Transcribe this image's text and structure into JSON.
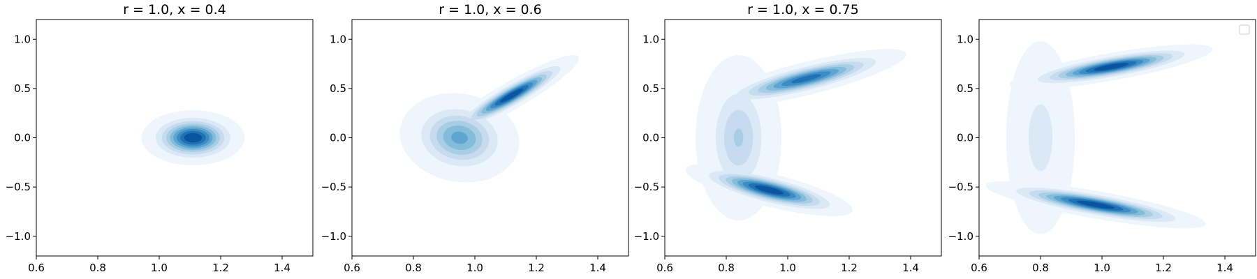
{
  "chart_data": [
    {
      "type": "contour",
      "title": "r = 1.0, x = 0.4",
      "xlim": [
        0.6,
        1.5
      ],
      "ylim": [
        -1.2,
        1.2
      ],
      "xticks": [
        "0.6",
        "0.8",
        "1.0",
        "1.2",
        "1.4"
      ],
      "yticks": [
        "1.0",
        "0.5",
        "0.0",
        "−0.5",
        "−1.0"
      ],
      "density_peaks": [
        {
          "x": 1.11,
          "y": 0.0,
          "sx": 0.06,
          "sy": 0.1,
          "angle": 0,
          "weight": 1.0
        }
      ]
    },
    {
      "type": "contour",
      "title": "r = 1.0, x = 0.6",
      "xlim": [
        0.6,
        1.5
      ],
      "ylim": [
        -1.2,
        1.2
      ],
      "xticks": [
        "0.6",
        "0.8",
        "1.0",
        "1.2",
        "1.4"
      ],
      "yticks": [
        "1.0",
        "0.5",
        "0.0",
        "−0.5",
        "−1.0"
      ],
      "density_peaks": [
        {
          "x": 1.12,
          "y": 0.43,
          "sx": 0.09,
          "sy": 0.05,
          "angle": 30,
          "weight": 1.0
        },
        {
          "x": 0.95,
          "y": 0.0,
          "sx": 0.07,
          "sy": 0.16,
          "angle": -10,
          "weight": 0.6
        }
      ]
    },
    {
      "type": "contour",
      "title": "r = 1.0, x = 0.75",
      "xlim": [
        0.6,
        1.5
      ],
      "ylim": [
        -1.2,
        1.2
      ],
      "xticks": [
        "0.6",
        "0.8",
        "1.0",
        "1.2",
        "1.4"
      ],
      "yticks": [
        "1.0",
        "0.5",
        "0.0",
        "−0.5",
        "−1.0"
      ],
      "density_peaks": [
        {
          "x": 1.06,
          "y": 0.6,
          "sx": 0.12,
          "sy": 0.06,
          "angle": 14,
          "weight": 0.85
        },
        {
          "x": 0.94,
          "y": -0.53,
          "sx": 0.1,
          "sy": 0.06,
          "angle": -14,
          "weight": 1.0
        },
        {
          "x": 0.84,
          "y": 0.0,
          "sx": 0.05,
          "sy": 0.3,
          "angle": 0,
          "weight": 0.35
        }
      ]
    },
    {
      "type": "contour",
      "title": "",
      "xlim": [
        0.6,
        1.5
      ],
      "ylim": [
        -1.2,
        1.2
      ],
      "xticks": [
        "0.6",
        "0.8",
        "1.0",
        "1.2",
        "1.4"
      ],
      "yticks": [
        "1.0",
        "0.5",
        "0.0",
        "−0.5",
        "−1.0"
      ],
      "legend": "top-right, empty",
      "density_peaks": [
        {
          "x": 1.03,
          "y": 0.72,
          "sx": 0.12,
          "sy": 0.05,
          "angle": 10,
          "weight": 1.0
        },
        {
          "x": 0.98,
          "y": -0.68,
          "sx": 0.13,
          "sy": 0.05,
          "angle": -10,
          "weight": 1.0
        },
        {
          "x": 0.8,
          "y": 0.0,
          "sx": 0.04,
          "sy": 0.35,
          "angle": 0,
          "weight": 0.18
        }
      ]
    }
  ],
  "colors": {
    "levels": [
      "#eef5fc",
      "#dbe9f6",
      "#c6dbef",
      "#a8cee4",
      "#84bcdb",
      "#5ea6d1",
      "#3d8dc4",
      "#2171b5",
      "#0b55a0",
      "#08306b"
    ]
  }
}
